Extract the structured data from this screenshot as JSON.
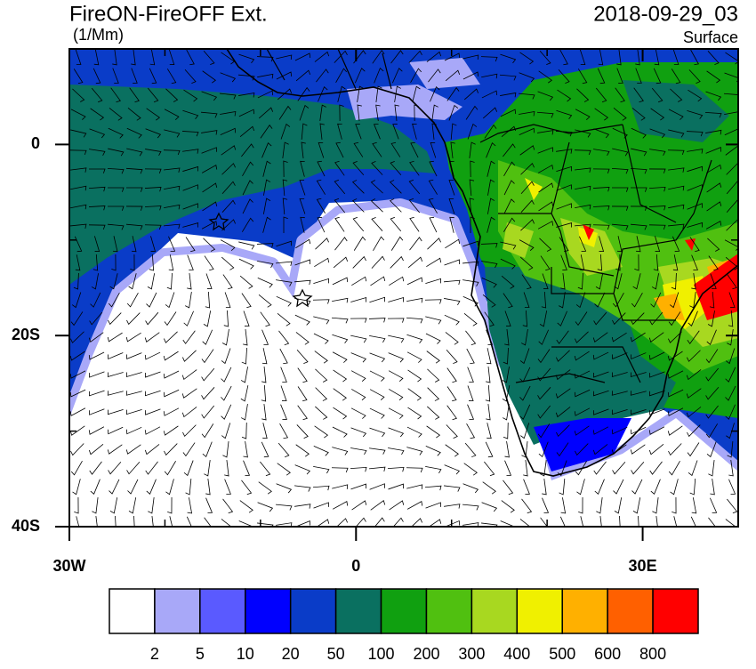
{
  "header": {
    "title": "FireON-FireOFF Ext.",
    "units": "(1/Mm)",
    "date": "2018-09-29_03",
    "level": "Surface"
  },
  "map": {
    "lonlim": [
      -30,
      40
    ],
    "latlim": [
      -40,
      10
    ],
    "lonticks": [
      {
        "value": -30,
        "label": "30W"
      },
      0,
      {
        "value": 30,
        "label": "30E"
      }
    ],
    "latticks": [
      0,
      {
        "value": -20,
        "label": "20S"
      },
      {
        "value": -40,
        "label": "40S"
      }
    ],
    "lonminorticks": [
      -20,
      -10,
      10,
      20,
      40
    ],
    "latminorticks": [
      10,
      -10,
      -30
    ]
  },
  "colorbar": {
    "labels": [
      2,
      5,
      10,
      20,
      50,
      100,
      200,
      300,
      400,
      500,
      600,
      800
    ],
    "colors": [
      "#ffffff",
      "#a8a8f8",
      "#5a5aff",
      "#0000ff",
      "#0a3cc8",
      "#0a7060",
      "#10a010",
      "#50c010",
      "#a8d820",
      "#f0f000",
      "#ffb000",
      "#ff6000",
      "#ff0000"
    ]
  }
}
